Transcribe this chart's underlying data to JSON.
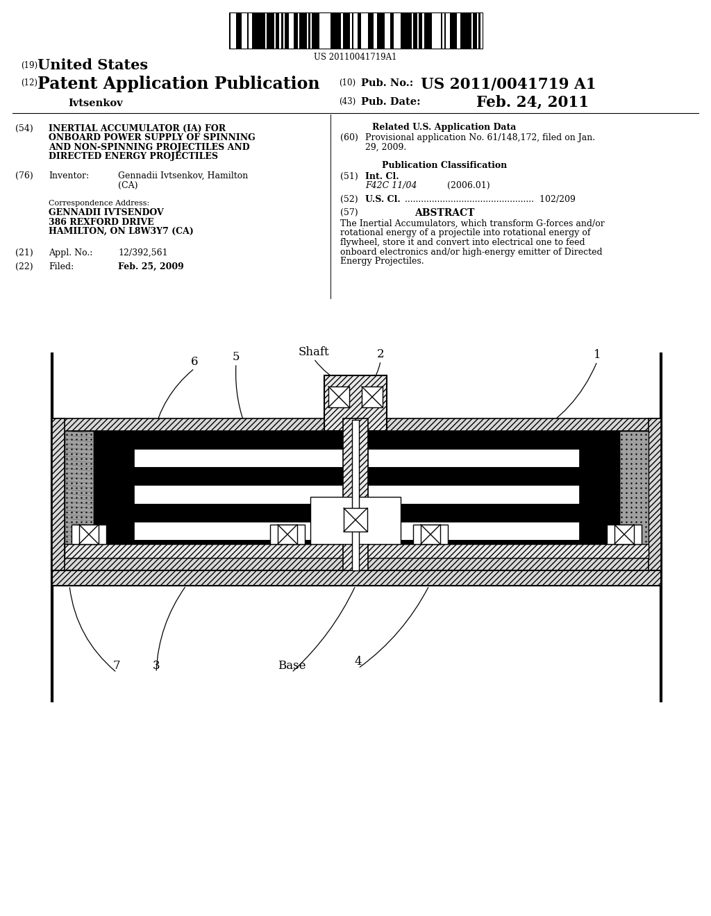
{
  "bg": "#ffffff",
  "barcode_number": "US 20110041719A1",
  "header": {
    "line19": "United States",
    "line12": "Patent Application Publication",
    "pub_no_label": "Pub. No.:",
    "pub_no": "US 2011/0041719 A1",
    "pub_date_label": "Pub. Date:",
    "pub_date": "Feb. 24, 2011",
    "inventor": "Ivtsenkov"
  },
  "body_left": {
    "f54_title": "INERTIAL ACCUMULATOR (IA) FOR\nONBOARD POWER SUPPLY OF SPINNING\nAND NON-SPINNING PROJECTILES AND\nDIRECTED ENERGY PROJECTILES",
    "f76_inventor": "Gennadii Ivtsenkov, Hamilton\n(CA)",
    "corr_addr": "GENNADII IVTSENDOV\n386 REXFORD DRIVE\nHAMILTON, ON L8W3Y7 (CA)",
    "f21_value": "12/392,561",
    "f22_value": "Feb. 25, 2009"
  },
  "body_right": {
    "related_title": "Related U.S. Application Data",
    "f60_text": "Provisional application No. 61/148,172, filed on Jan.\n29, 2009.",
    "pub_class_title": "Publication Classification",
    "f51_code": "F42C 11/04",
    "f51_year": "(2006.01)",
    "f52_value": "102/209",
    "abstract_title": "ABSTRACT",
    "abstract": "The Inertial Accumulators, which transform G-forces and/or\nrotational energy of a projectile into rotational energy of\nflywheel, store it and convert into electrical one to feed\nonboard electronics and/or high-energy emitter of Directed\nEnergy Projectiles."
  }
}
